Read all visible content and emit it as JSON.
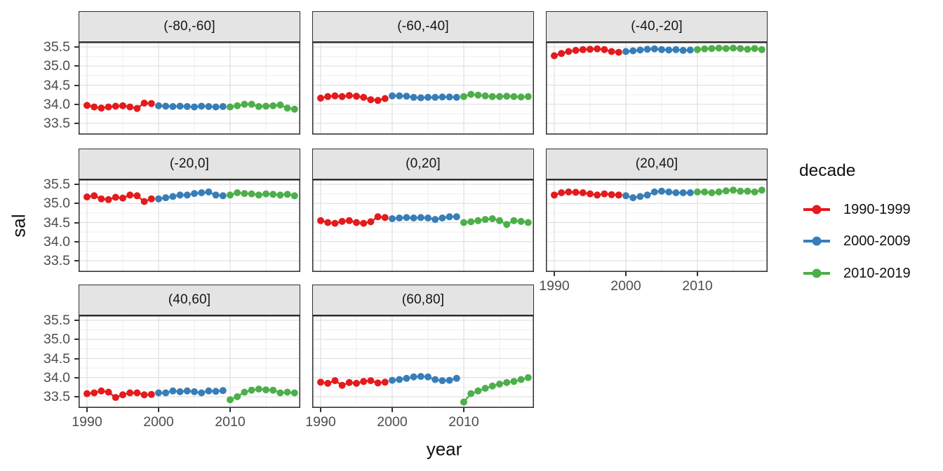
{
  "figure": {
    "y_axis_title": "sal",
    "x_axis_title": "year"
  },
  "axis": {
    "y_ticks": [
      "35.5",
      "35.0",
      "34.5",
      "34.0",
      "33.5"
    ],
    "y_tick_values": [
      35.5,
      35.0,
      34.5,
      34.0,
      33.5
    ],
    "y_minor_values": [
      35.25,
      34.75,
      34.25,
      33.75,
      33.25
    ],
    "x_ticks": [
      "1990",
      "2000",
      "2010"
    ],
    "x_tick_values": [
      1990,
      2000,
      2010
    ],
    "x_minor_values": [
      1995,
      2005,
      2015
    ],
    "tick_label_color": "#4d4d4d"
  },
  "legend": {
    "title": "decade",
    "entries": [
      {
        "label": "1990-1999",
        "color": "#E41A1C"
      },
      {
        "label": "2000-2009",
        "color": "#377EB8"
      },
      {
        "label": "2010-2019",
        "color": "#4DAF4A"
      }
    ]
  },
  "style_colors": {
    "panel_border": "#2e2e2e",
    "strip_background": "#e4e4e4",
    "grid_major": "#e0e0e0",
    "grid_minor": "#efefef"
  },
  "chart_data": {
    "type": "scatter-line",
    "title": "",
    "xlabel": "year",
    "ylabel": "sal",
    "facet_variable": "latitude band",
    "series_group": "decade",
    "xlim": [
      1988.8,
      2020.2
    ],
    "ylim": [
      33.25,
      35.62
    ],
    "grid": true,
    "legend_position": "right",
    "x": [
      1990,
      1991,
      1992,
      1993,
      1994,
      1995,
      1996,
      1997,
      1998,
      1999,
      2000,
      2001,
      2002,
      2003,
      2004,
      2005,
      2006,
      2007,
      2008,
      2009,
      2010,
      2011,
      2012,
      2013,
      2014,
      2015,
      2016,
      2017,
      2018,
      2019
    ],
    "decade_spans": [
      {
        "name": "1990-1999",
        "from": 1990,
        "to": 1999
      },
      {
        "name": "2000-2009",
        "from": 2000,
        "to": 2009
      },
      {
        "name": "2010-2019",
        "from": 2010,
        "to": 2019
      }
    ],
    "facets": [
      {
        "label": "(-80,-60]",
        "values": [
          33.97,
          33.93,
          33.9,
          33.93,
          33.95,
          33.96,
          33.93,
          33.89,
          34.03,
          34.02,
          33.96,
          33.95,
          33.94,
          33.95,
          33.94,
          33.93,
          33.95,
          33.94,
          33.93,
          33.94,
          33.93,
          33.96,
          34.0,
          34.0,
          33.94,
          33.95,
          33.96,
          33.98,
          33.9,
          33.87
        ]
      },
      {
        "label": "(-60,-40]",
        "values": [
          34.16,
          34.2,
          34.22,
          34.2,
          34.23,
          34.21,
          34.18,
          34.12,
          34.1,
          34.15,
          34.22,
          34.22,
          34.21,
          34.18,
          34.17,
          34.18,
          34.18,
          34.19,
          34.19,
          34.18,
          34.2,
          34.26,
          34.24,
          34.22,
          34.2,
          34.2,
          34.21,
          34.2,
          34.19,
          34.2
        ]
      },
      {
        "label": "(-40,-20]",
        "values": [
          35.27,
          35.33,
          35.38,
          35.41,
          35.43,
          35.44,
          35.45,
          35.43,
          35.38,
          35.36,
          35.38,
          35.4,
          35.42,
          35.44,
          35.45,
          35.43,
          35.42,
          35.43,
          35.41,
          35.42,
          35.43,
          35.45,
          35.46,
          35.47,
          35.46,
          35.47,
          35.46,
          35.44,
          35.46,
          35.43
        ]
      },
      {
        "label": "(-20,0]",
        "values": [
          35.17,
          35.2,
          35.12,
          35.1,
          35.16,
          35.14,
          35.22,
          35.2,
          35.05,
          35.12,
          35.12,
          35.15,
          35.18,
          35.22,
          35.22,
          35.26,
          35.28,
          35.3,
          35.22,
          35.2,
          35.22,
          35.28,
          35.26,
          35.25,
          35.22,
          35.25,
          35.24,
          35.22,
          35.24,
          35.2
        ]
      },
      {
        "label": "(0,20]",
        "values": [
          34.55,
          34.5,
          34.48,
          34.53,
          34.55,
          34.5,
          34.48,
          34.52,
          34.65,
          34.63,
          34.6,
          34.62,
          34.63,
          34.62,
          34.63,
          34.62,
          34.58,
          34.62,
          34.65,
          34.65,
          34.5,
          34.52,
          34.55,
          34.58,
          34.6,
          34.55,
          34.45,
          34.55,
          34.53,
          34.5
        ]
      },
      {
        "label": "(20,40]",
        "values": [
          35.22,
          35.28,
          35.3,
          35.29,
          35.28,
          35.25,
          35.22,
          35.25,
          35.23,
          35.22,
          35.2,
          35.15,
          35.18,
          35.22,
          35.3,
          35.32,
          35.3,
          35.28,
          35.28,
          35.28,
          35.3,
          35.3,
          35.28,
          35.3,
          35.33,
          35.35,
          35.32,
          35.32,
          35.3,
          35.35
        ]
      },
      {
        "label": "(40,60]",
        "values": [
          33.58,
          33.6,
          33.65,
          33.62,
          33.48,
          33.55,
          33.6,
          33.6,
          33.55,
          33.56,
          33.6,
          33.6,
          33.65,
          33.63,
          33.65,
          33.63,
          33.6,
          33.65,
          33.64,
          33.66,
          33.42,
          33.5,
          33.62,
          33.67,
          33.7,
          33.68,
          33.67,
          33.6,
          33.62,
          33.6
        ]
      },
      {
        "label": "(60,80]",
        "values": [
          33.88,
          33.85,
          33.92,
          33.8,
          33.87,
          33.85,
          33.9,
          33.92,
          33.86,
          33.88,
          33.93,
          33.95,
          33.98,
          34.02,
          34.03,
          34.02,
          33.95,
          33.92,
          33.93,
          33.98,
          33.36,
          33.58,
          33.65,
          33.72,
          33.78,
          33.83,
          33.87,
          33.9,
          33.95,
          34.0
        ]
      }
    ]
  }
}
